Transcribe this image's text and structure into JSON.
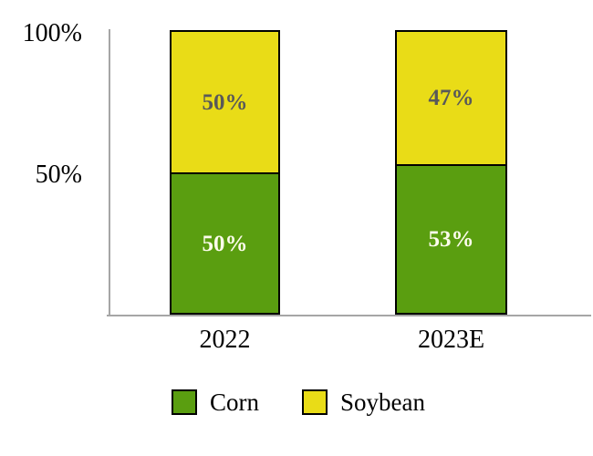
{
  "chart_data": {
    "type": "bar",
    "subtype": "stacked-100-percent-column",
    "title": "",
    "xlabel": "",
    "ylabel": "",
    "categories": [
      "2022",
      "2023E"
    ],
    "series": [
      {
        "name": "Corn",
        "color": "#5A9E10",
        "label_color": "#FCFCEC",
        "values": [
          50,
          53
        ],
        "labels": [
          "50%",
          "53%"
        ]
      },
      {
        "name": "Soybean",
        "color": "#E9DC17",
        "label_color": "#595959",
        "values": [
          50,
          47
        ],
        "labels": [
          "50%",
          "47%"
        ]
      }
    ],
    "stack_order_top_to_bottom": [
      "Soybean",
      "Corn"
    ],
    "yticks": [
      "100%",
      "50%"
    ],
    "ylim": [
      0,
      100
    ],
    "grid": false,
    "legend_position": "bottom"
  },
  "colors": {
    "background": "#FFFFFF",
    "axis_line": "#A6A6A6",
    "bar_border": "#000000"
  }
}
